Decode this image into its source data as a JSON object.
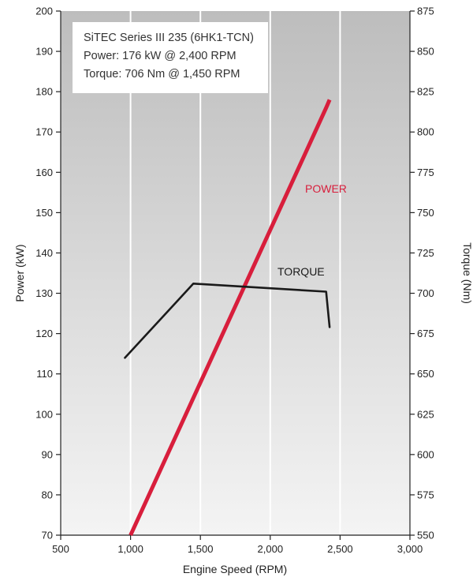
{
  "chart_data": {
    "type": "line",
    "info_box": [
      "SiTEC Series III 235 (6HK1-TCN)",
      "Power: 176 kW @ 2,400 RPM",
      "Torque: 706 Nm @ 1,450 RPM"
    ],
    "xlabel": "Engine Speed (RPM)",
    "ylabel_left": "Power (kW)",
    "ylabel_right": "Torque (Nm)",
    "x_ticks": [
      "500",
      "1,000",
      "1,500",
      "2,000",
      "2,500",
      "3,000"
    ],
    "y_left_ticks": [
      "70",
      "80",
      "90",
      "100",
      "110",
      "120",
      "130",
      "140",
      "150",
      "160",
      "170",
      "180",
      "190",
      "200"
    ],
    "y_right_ticks": [
      "550",
      "575",
      "600",
      "625",
      "650",
      "675",
      "700",
      "725",
      "750",
      "775",
      "800",
      "825",
      "850",
      "875"
    ],
    "xlim": [
      500,
      3000
    ],
    "ylim_left": [
      70,
      200
    ],
    "ylim_right": [
      550,
      875
    ],
    "grid": true,
    "series": [
      {
        "name": "POWER",
        "axis": "left",
        "color": "#d81e3c",
        "x": [
          1000,
          2400,
          2425
        ],
        "y": [
          70,
          176,
          178
        ]
      },
      {
        "name": "TORQUE",
        "axis": "right",
        "color": "#1a1a1a",
        "x": [
          960,
          1450,
          2400,
          2425
        ],
        "y": [
          660,
          706,
          701,
          679
        ]
      }
    ]
  }
}
